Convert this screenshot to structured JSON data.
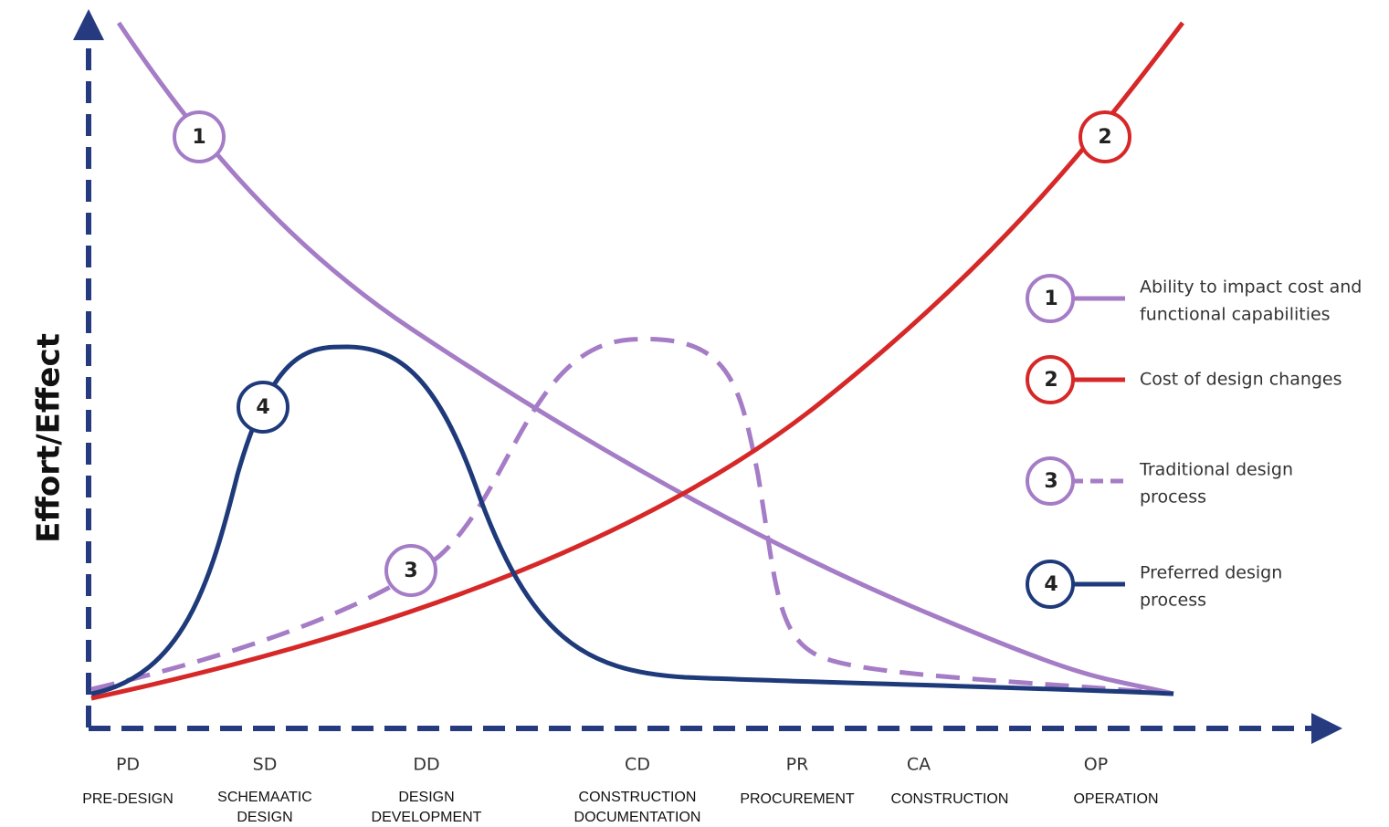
{
  "y_axis_label": "Effort/Effect",
  "phases": [
    {
      "code": "PD",
      "name": [
        "PRE-DESIGN"
      ]
    },
    {
      "code": "SD",
      "name": [
        "SCHEMAATIC",
        "DESIGN"
      ]
    },
    {
      "code": "DD",
      "name": [
        "DESIGN",
        "DEVELOPMENT"
      ]
    },
    {
      "code": "CD",
      "name": [
        "CONSTRUCTION",
        "DOCUMENTATION"
      ]
    },
    {
      "code": "PR",
      "name": [
        "PROCUREMENT"
      ]
    },
    {
      "code": "CA",
      "name": [
        "CONSTRUCTION"
      ]
    },
    {
      "code": "OP",
      "name": [
        "OPERATION"
      ]
    }
  ],
  "legend": [
    {
      "number": "1",
      "label": [
        "Ability to impact cost and",
        "functional capabilities"
      ]
    },
    {
      "number": "2",
      "label": [
        "Cost of design changes"
      ]
    },
    {
      "number": "3",
      "label": [
        "Traditional design",
        "process"
      ]
    },
    {
      "number": "4",
      "label": [
        "Preferred design",
        "process"
      ]
    }
  ]
}
